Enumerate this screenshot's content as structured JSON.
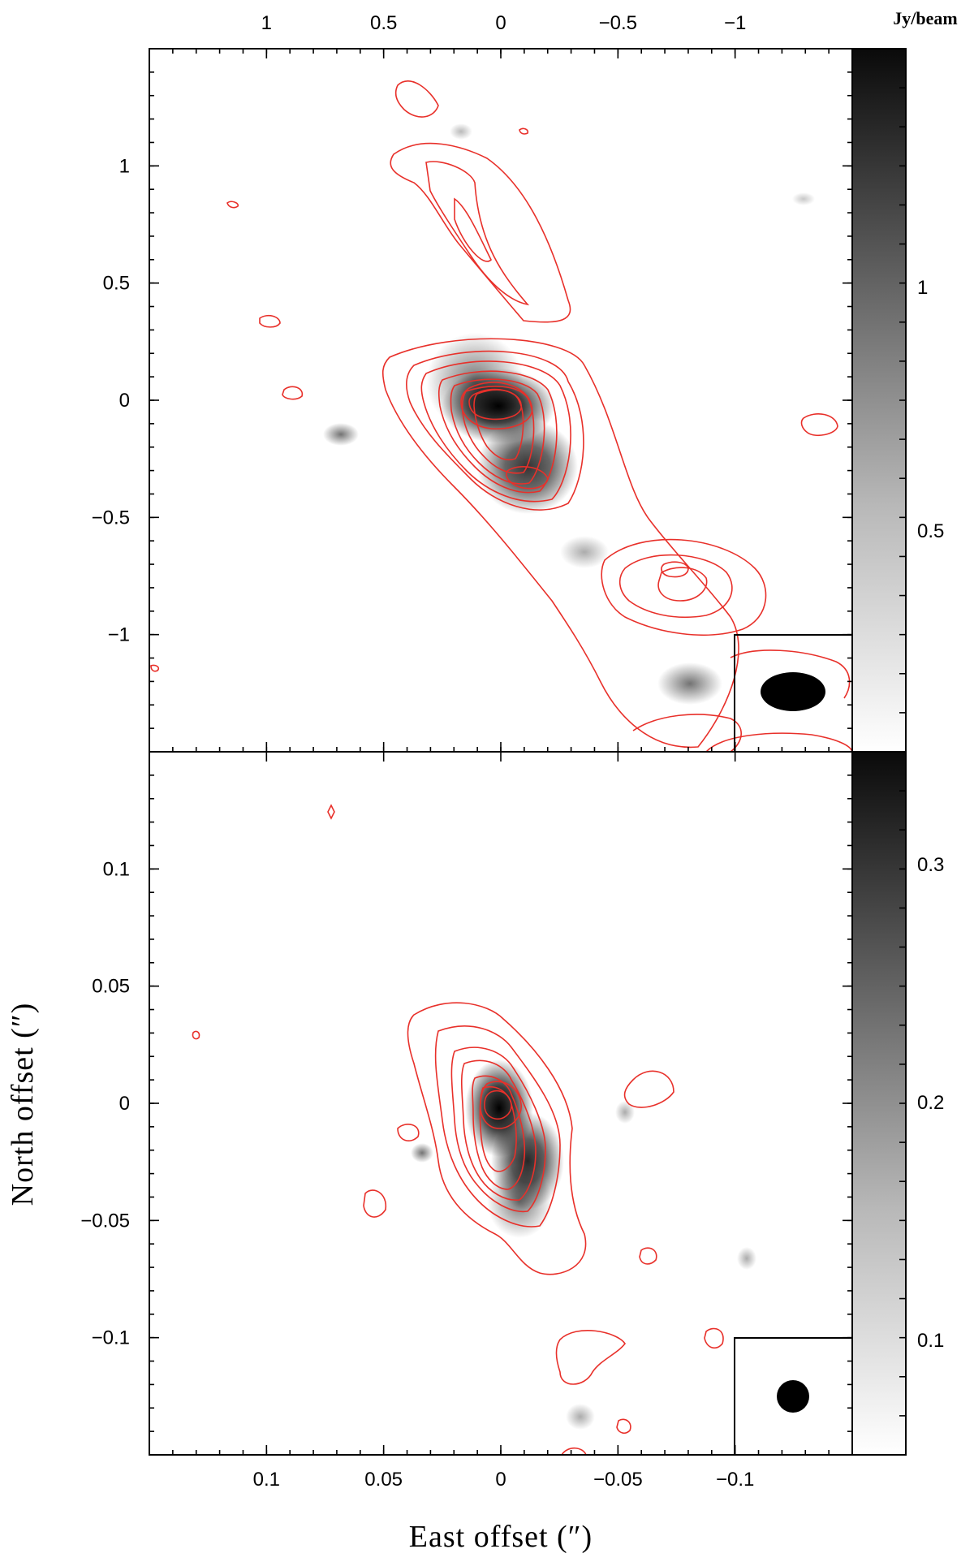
{
  "colors": {
    "contour": "#e8302a",
    "frame": "#000000",
    "colorbar_dark": "#0a0a0a",
    "colorbar_light": "#ffffff"
  },
  "chart_data": [
    {
      "type": "heatmap",
      "panel": "top",
      "overlay": "contour",
      "x_top_ticks": [
        "1",
        "0.5",
        "0",
        "−0.5",
        "−1"
      ],
      "xlim": [
        1.5,
        -1.5
      ],
      "ylim": [
        -1.5,
        1.5
      ],
      "y_ticks": [
        "1",
        "0.5",
        "0",
        "−0.5",
        "−1"
      ],
      "colorbar_label": "Jy/beam",
      "colorbar_ticks": [
        "1",
        "0.5"
      ],
      "colorbar_range": [
        0.05,
        1.4
      ],
      "peaks": [
        {
          "x": 0.0,
          "y": -0.02,
          "value": 1.35
        },
        {
          "x": -0.12,
          "y": -0.33,
          "value": 0.7
        },
        {
          "x": -0.75,
          "y": -0.72,
          "value": 0.25
        }
      ],
      "beam": "ellipse"
    },
    {
      "type": "heatmap",
      "panel": "bottom",
      "overlay": "contour",
      "x_ticks": [
        "0.1",
        "0.05",
        "0",
        "−0.05",
        "−0.1"
      ],
      "xlim": [
        0.15,
        -0.15
      ],
      "ylim": [
        -0.15,
        0.15
      ],
      "y_ticks": [
        "0.1",
        "0.05",
        "0",
        "−0.05",
        "−0.1"
      ],
      "xlabel": "East offset (″)",
      "ylabel": "North offset (″)",
      "colorbar_ticks": [
        "0.3",
        "0.2",
        "0.1"
      ],
      "colorbar_range": [
        0.02,
        0.35
      ],
      "peaks": [
        {
          "x": 0.0,
          "y": 0.0,
          "value": 0.34
        },
        {
          "x": -0.015,
          "y": -0.04,
          "value": 0.2
        }
      ],
      "beam": "circle"
    }
  ]
}
